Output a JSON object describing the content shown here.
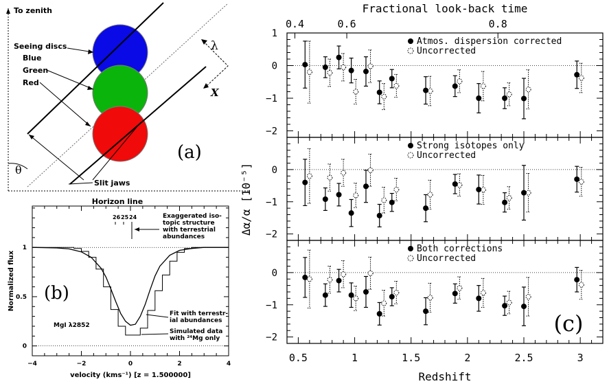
{
  "panel_a": {
    "tag": "(a)",
    "to_zenith": "To zenith",
    "seeing_discs": "Seeing discs",
    "blue": "Blue",
    "green": "Green",
    "red": "Red",
    "lambda": "λ",
    "x_label": "X",
    "theta": "θ",
    "slit_jaws": "Slit jaws",
    "horizon": "Horizon line",
    "colors": {
      "blue": "#0a0ae6",
      "green": "#0ab40a",
      "red": "#f00a0a"
    }
  },
  "chart_data": [
    {
      "id": "panel_b",
      "type": "line",
      "tag": "(b)",
      "xlabel": "velocity (kms⁻¹) [z = 1.500000]",
      "ylabel": "Normalized flux",
      "xlim": [
        -4,
        4
      ],
      "ylim": [
        -0.1,
        1.42
      ],
      "xticks": [
        -4,
        -2,
        0,
        2,
        4
      ],
      "yticks": [
        0,
        0.5,
        1
      ],
      "ion_label": "MgI λ2852",
      "isotope_labels": [
        "26",
        "25",
        "24"
      ],
      "isotope_note": "Exaggerated iso-\ntopic structure\nwith terrestrial\nabundances",
      "fit_note": "Fit with terrestr-\nial abundances",
      "sim_note": "Simulated data\nwith ²⁴Mg only",
      "fit_curve": {
        "x": [
          -4,
          -3,
          -2.5,
          -2,
          -1.6,
          -1.2,
          -1.0,
          -0.8,
          -0.6,
          -0.4,
          -0.2,
          0,
          0.2,
          0.4,
          0.6,
          0.8,
          1.0,
          1.2,
          1.6,
          2,
          2.5,
          3,
          4
        ],
        "y": [
          1.0,
          0.995,
          0.985,
          0.955,
          0.9,
          0.79,
          0.7,
          0.58,
          0.45,
          0.33,
          0.25,
          0.21,
          0.22,
          0.3,
          0.42,
          0.57,
          0.71,
          0.81,
          0.92,
          0.97,
          0.99,
          1.0,
          1.0
        ]
      },
      "sim_steps": {
        "x": [
          -4,
          -3.0,
          -2.3,
          -2.0,
          -1.7,
          -1.4,
          -1.1,
          -0.8,
          -0.5,
          -0.2,
          0.1,
          0.4,
          0.7,
          1.0,
          1.3,
          1.6,
          1.9,
          2.2,
          2.5,
          3.0,
          4
        ],
        "y": [
          1.0,
          1.0,
          0.99,
          0.96,
          0.9,
          0.78,
          0.6,
          0.37,
          0.2,
          0.11,
          0.11,
          0.18,
          0.36,
          0.56,
          0.72,
          0.86,
          0.95,
          0.99,
          1.0,
          1.0,
          1.0
        ]
      }
    },
    {
      "id": "panel_c",
      "type": "scatter",
      "tag": "(c)",
      "xlabel": "Redshift",
      "top_axis_label": "Fractional look-back time",
      "ylabel": "Δα/α  [10⁻⁵]",
      "xlim": [
        0.4,
        3.2
      ],
      "xticks": [
        0.5,
        1,
        1.5,
        2,
        2.5,
        3
      ],
      "top_ticks": [
        {
          "label": "0.4",
          "z": 0.47
        },
        {
          "label": "0.6",
          "z": 0.93
        },
        {
          "label": "0.8",
          "z": 2.27
        }
      ],
      "ylim": [
        -2.2,
        1.0
      ],
      "yticks": [
        -2,
        -1,
        0,
        1
      ],
      "subpanels": [
        {
          "legend": [
            "Atmos. dispersion corrected",
            "Uncorrected"
          ],
          "corrected": [
            {
              "z": 0.56,
              "y": 0.03,
              "err": 0.72
            },
            {
              "z": 0.74,
              "y": -0.05,
              "err": 0.32
            },
            {
              "z": 0.86,
              "y": 0.25,
              "err": 0.35
            },
            {
              "z": 0.97,
              "y": -0.15,
              "err": 0.38
            },
            {
              "z": 1.1,
              "y": -0.18,
              "err": 0.45
            },
            {
              "z": 1.22,
              "y": -0.82,
              "err": 0.35
            },
            {
              "z": 1.33,
              "y": -0.4,
              "err": 0.28
            },
            {
              "z": 1.63,
              "y": -0.76,
              "err": 0.42
            },
            {
              "z": 1.89,
              "y": -0.63,
              "err": 0.32
            },
            {
              "z": 2.1,
              "y": -1.0,
              "err": 0.45
            },
            {
              "z": 2.33,
              "y": -1.0,
              "err": 0.32
            },
            {
              "z": 2.5,
              "y": -1.01,
              "err": 0.62
            },
            {
              "z": 2.97,
              "y": -0.28,
              "err": 0.42
            }
          ],
          "uncorrected": [
            {
              "z": 0.6,
              "y": -0.2,
              "err": 0.95
            },
            {
              "z": 0.78,
              "y": -0.22,
              "err": 0.42
            },
            {
              "z": 0.9,
              "y": -0.05,
              "err": 0.42
            },
            {
              "z": 1.01,
              "y": -0.8,
              "err": 0.38
            },
            {
              "z": 1.14,
              "y": -0.02,
              "err": 0.5
            },
            {
              "z": 1.26,
              "y": -0.95,
              "err": 0.4
            },
            {
              "z": 1.37,
              "y": -0.62,
              "err": 0.35
            },
            {
              "z": 1.67,
              "y": -0.78,
              "err": 0.45
            },
            {
              "z": 1.93,
              "y": -0.48,
              "err": 0.35
            },
            {
              "z": 2.14,
              "y": -0.63,
              "err": 0.45
            },
            {
              "z": 2.37,
              "y": -0.88,
              "err": 0.35
            },
            {
              "z": 2.54,
              "y": -0.73,
              "err": 0.6
            },
            {
              "z": 3.01,
              "y": -0.38,
              "err": 0.45
            }
          ]
        },
        {
          "legend": [
            "Strong isotopes only",
            "Uncorrected"
          ],
          "corrected": [
            {
              "z": 0.56,
              "y": -0.4,
              "err": 0.72
            },
            {
              "z": 0.74,
              "y": -0.92,
              "err": 0.35
            },
            {
              "z": 0.86,
              "y": -0.78,
              "err": 0.35
            },
            {
              "z": 0.97,
              "y": -1.35,
              "err": 0.42
            },
            {
              "z": 1.1,
              "y": -0.52,
              "err": 0.5
            },
            {
              "z": 1.22,
              "y": -1.43,
              "err": 0.35
            },
            {
              "z": 1.33,
              "y": -1.02,
              "err": 0.28
            },
            {
              "z": 1.63,
              "y": -1.2,
              "err": 0.42
            },
            {
              "z": 1.89,
              "y": -0.45,
              "err": 0.3
            },
            {
              "z": 2.1,
              "y": -0.62,
              "err": 0.45
            },
            {
              "z": 2.33,
              "y": -1.02,
              "err": 0.3
            },
            {
              "z": 2.5,
              "y": -0.72,
              "err": 0.85
            },
            {
              "z": 2.97,
              "y": -0.3,
              "err": 0.4
            }
          ],
          "uncorrected": [
            {
              "z": 0.6,
              "y": -0.2,
              "err": 0.85
            },
            {
              "z": 0.78,
              "y": -0.25,
              "err": 0.42
            },
            {
              "z": 0.9,
              "y": -0.1,
              "err": 0.42
            },
            {
              "z": 1.01,
              "y": -0.8,
              "err": 0.38
            },
            {
              "z": 1.14,
              "y": -0.02,
              "err": 0.5
            },
            {
              "z": 1.26,
              "y": -0.95,
              "err": 0.4
            },
            {
              "z": 1.37,
              "y": -0.62,
              "err": 0.35
            },
            {
              "z": 1.67,
              "y": -0.78,
              "err": 0.45
            },
            {
              "z": 1.93,
              "y": -0.48,
              "err": 0.35
            },
            {
              "z": 2.14,
              "y": -0.63,
              "err": 0.45
            },
            {
              "z": 2.37,
              "y": -0.88,
              "err": 0.35
            },
            {
              "z": 2.54,
              "y": -0.72,
              "err": 0.6
            },
            {
              "z": 3.01,
              "y": -0.38,
              "err": 0.45
            }
          ]
        },
        {
          "legend": [
            "Both corrections",
            "Uncorrected"
          ],
          "corrected": [
            {
              "z": 0.56,
              "y": -0.15,
              "err": 0.62
            },
            {
              "z": 0.74,
              "y": -0.7,
              "err": 0.35
            },
            {
              "z": 0.86,
              "y": -0.25,
              "err": 0.35
            },
            {
              "z": 0.97,
              "y": -0.7,
              "err": 0.38
            },
            {
              "z": 1.1,
              "y": -0.6,
              "err": 0.48
            },
            {
              "z": 1.22,
              "y": -1.28,
              "err": 0.35
            },
            {
              "z": 1.33,
              "y": -0.75,
              "err": 0.28
            },
            {
              "z": 1.63,
              "y": -1.2,
              "err": 0.42
            },
            {
              "z": 1.89,
              "y": -0.65,
              "err": 0.3
            },
            {
              "z": 2.1,
              "y": -0.8,
              "err": 0.4
            },
            {
              "z": 2.33,
              "y": -1.03,
              "err": 0.3
            },
            {
              "z": 2.5,
              "y": -1.05,
              "err": 0.6
            },
            {
              "z": 2.97,
              "y": -0.22,
              "err": 0.38
            }
          ],
          "uncorrected": [
            {
              "z": 0.6,
              "y": -0.2,
              "err": 0.9
            },
            {
              "z": 0.78,
              "y": -0.22,
              "err": 0.42
            },
            {
              "z": 0.9,
              "y": -0.05,
              "err": 0.42
            },
            {
              "z": 1.01,
              "y": -0.8,
              "err": 0.38
            },
            {
              "z": 1.14,
              "y": -0.02,
              "err": 0.5
            },
            {
              "z": 1.26,
              "y": -0.95,
              "err": 0.4
            },
            {
              "z": 1.37,
              "y": -0.62,
              "err": 0.35
            },
            {
              "z": 1.67,
              "y": -0.78,
              "err": 0.45
            },
            {
              "z": 1.93,
              "y": -0.48,
              "err": 0.35
            },
            {
              "z": 2.14,
              "y": -0.63,
              "err": 0.45
            },
            {
              "z": 2.37,
              "y": -0.93,
              "err": 0.35
            },
            {
              "z": 2.54,
              "y": -0.75,
              "err": 0.6
            },
            {
              "z": 3.01,
              "y": -0.38,
              "err": 0.45
            }
          ]
        }
      ]
    }
  ]
}
